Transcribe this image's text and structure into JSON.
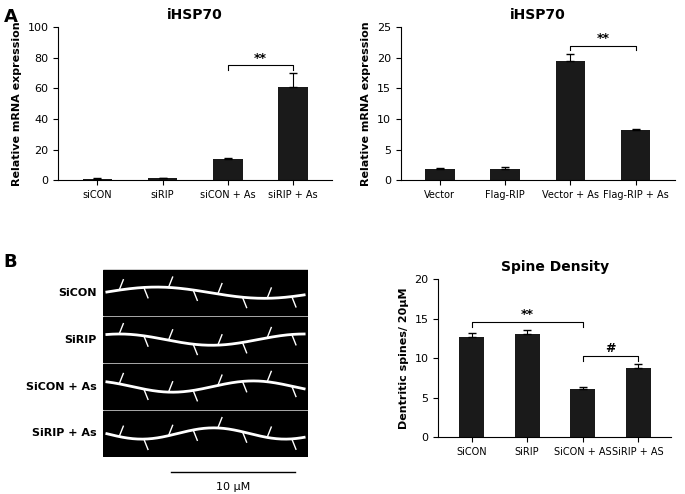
{
  "panel_labels": [
    "A",
    "B"
  ],
  "image": {
    "row_labels": [
      "SiCON",
      "SiRIP",
      "SiCON + As",
      "SiRIP + As"
    ],
    "scale_bar": "10 μM"
  },
  "chart_data": [
    {
      "type": "bar",
      "title": "iHSP70",
      "y_label": "Relative mRNA expression",
      "categories": [
        "siCON",
        "siRIP",
        "siCON + As",
        "siRIP + As"
      ],
      "values": [
        1,
        1.5,
        14,
        61
      ],
      "errors": [
        0.2,
        0.3,
        0.5,
        9
      ],
      "color": "#1a1a1a",
      "ylim": [
        0,
        100
      ],
      "yticks": [
        0,
        20,
        40,
        60,
        80,
        100
      ],
      "grid": false,
      "annotations": [
        {
          "from": 2,
          "to": 3,
          "text": "**"
        }
      ]
    },
    {
      "type": "bar",
      "title": "iHSP70",
      "y_label": "Relative mRNA expression",
      "categories": [
        "Vector",
        "Flag-RIP",
        "Vector + As",
        "Flag-RIP + As"
      ],
      "values": [
        1.9,
        1.8,
        19.5,
        8.2
      ],
      "errors": [
        0.1,
        0.3,
        1.2,
        0.2
      ],
      "color": "#1a1a1a",
      "ylim": [
        0,
        25
      ],
      "yticks": [
        0,
        5,
        10,
        15,
        20,
        25
      ],
      "grid": false,
      "annotations": [
        {
          "from": 2,
          "to": 3,
          "text": "**"
        }
      ]
    },
    {
      "type": "bar",
      "title": "Spine Density",
      "y_label": "Dentritic spines/ 20μM",
      "categories": [
        "SiCON",
        "SiRIP",
        "SiCON + AS",
        "SiRIP + AS"
      ],
      "values": [
        12.7,
        13.0,
        6.1,
        8.8
      ],
      "errors": [
        0.5,
        0.6,
        0.3,
        0.5
      ],
      "color": "#1a1a1a",
      "ylim": [
        0,
        20
      ],
      "yticks": [
        0,
        5,
        10,
        15,
        20
      ],
      "grid": false,
      "annotations": [
        {
          "from": 0,
          "to": 2,
          "text": "**"
        },
        {
          "from": 2,
          "to": 3,
          "text": "#"
        }
      ]
    }
  ]
}
